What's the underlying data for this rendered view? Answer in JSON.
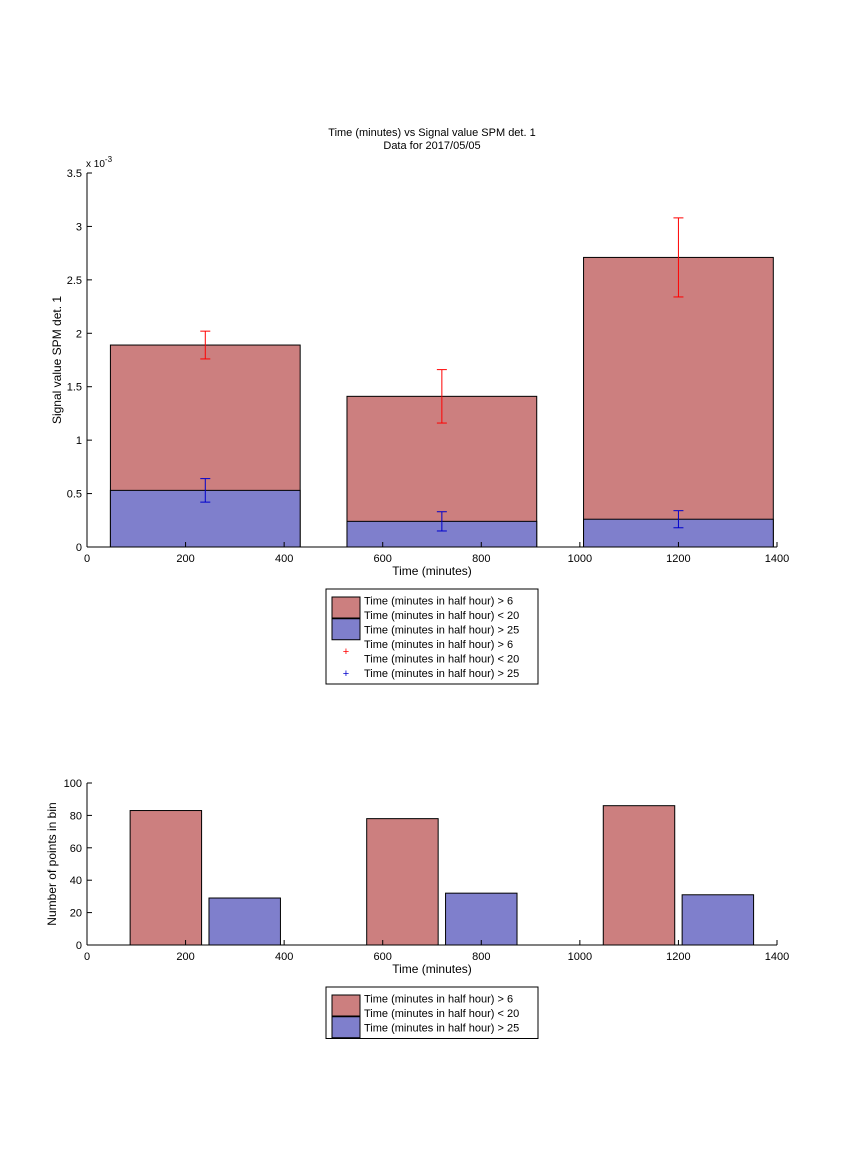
{
  "colors": {
    "series_a_fill": "#cc7f7f",
    "series_b_fill": "#7f7fcc",
    "series_a_error": "#ff0000",
    "series_b_error": "#0000cc"
  },
  "chart_data": [
    {
      "type": "bar",
      "stacking": "overlay",
      "title": "Time (minutes) vs Signal value SPM det. 1",
      "subtitle": "Data for 2017/05/05",
      "xlabel": "Time (minutes)",
      "ylabel": "Signal value SPM det. 1",
      "y_exponent_label": "x 10",
      "y_exponent_power": "-3",
      "xlim": [
        0,
        1400
      ],
      "ylim": [
        0,
        3.5
      ],
      "xticks": [
        0,
        200,
        400,
        600,
        800,
        1000,
        1200,
        1400
      ],
      "yticks": [
        0,
        0.5,
        1,
        1.5,
        2,
        2.5,
        3,
        3.5
      ],
      "xtick_labels": [
        "0",
        "200",
        "400",
        "600",
        "800",
        "1000",
        "1200",
        "1400"
      ],
      "ytick_labels": [
        "0",
        "0.5",
        "1",
        "1.5",
        "2",
        "2.5",
        "3",
        "3.5"
      ],
      "bar_width": 385,
      "x": [
        240,
        720,
        1200
      ],
      "series": [
        {
          "name": "Time (minutes in half hour) > 6\nTime (minutes in half hour) < 20",
          "values": [
            1.89,
            1.41,
            2.71
          ],
          "error": [
            0.13,
            0.25,
            0.37
          ]
        },
        {
          "name": "Time (minutes in half hour) > 25",
          "values": [
            0.53,
            0.24,
            0.26
          ],
          "error": [
            0.11,
            0.09,
            0.08
          ]
        }
      ],
      "legend": {
        "placement": "below",
        "entries": [
          {
            "kind": "bar",
            "series": 0,
            "lines": [
              "Time (minutes in half hour) > 6",
              "Time (minutes in half hour) < 20"
            ]
          },
          {
            "kind": "bar",
            "series": 1,
            "lines": [
              "Time (minutes in half hour) > 25"
            ]
          },
          {
            "kind": "marker",
            "series": 0,
            "marker": "+",
            "lines": [
              "Time (minutes in half hour) > 6",
              "Time (minutes in half hour) < 20"
            ]
          },
          {
            "kind": "marker",
            "series": 1,
            "marker": "+",
            "lines": [
              "Time (minutes in half hour) > 25"
            ]
          }
        ]
      }
    },
    {
      "type": "bar",
      "stacking": "grouped",
      "xlabel": "Time (minutes)",
      "ylabel": "Number of points in bin",
      "xlim": [
        0,
        1400
      ],
      "ylim": [
        0,
        100
      ],
      "xticks": [
        0,
        200,
        400,
        600,
        800,
        1000,
        1200,
        1400
      ],
      "yticks": [
        0,
        20,
        40,
        60,
        80,
        100
      ],
      "xtick_labels": [
        "0",
        "200",
        "400",
        "600",
        "800",
        "1000",
        "1200",
        "1400"
      ],
      "ytick_labels": [
        "0",
        "20",
        "40",
        "60",
        "80",
        "100"
      ],
      "bar_width": 145,
      "series": [
        {
          "name": "Time (minutes in half hour) > 6\nTime (minutes in half hour) < 20",
          "x": [
            160,
            640,
            1120
          ],
          "values": [
            83,
            78,
            86
          ]
        },
        {
          "name": "Time (minutes in half hour) > 25",
          "x": [
            320,
            800,
            1280
          ],
          "values": [
            29,
            32,
            31
          ]
        }
      ],
      "legend": {
        "placement": "below",
        "entries": [
          {
            "kind": "bar",
            "series": 0,
            "lines": [
              "Time (minutes in half hour) > 6",
              "Time (minutes in half hour) < 20"
            ]
          },
          {
            "kind": "bar",
            "series": 1,
            "lines": [
              "Time (minutes in half hour) > 25"
            ]
          }
        ]
      }
    }
  ]
}
